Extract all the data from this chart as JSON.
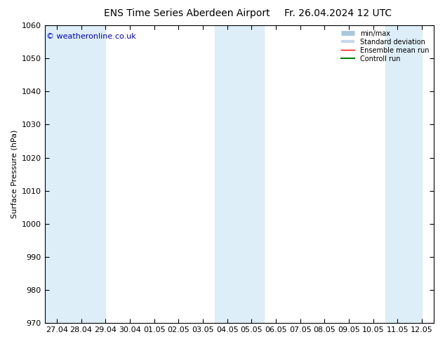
{
  "title_left": "ENS Time Series Aberdeen Airport",
  "title_right": "Fr. 26.04.2024 12 UTC",
  "ylabel": "Surface Pressure (hPa)",
  "ylim": [
    970,
    1060
  ],
  "yticks": [
    970,
    980,
    990,
    1000,
    1010,
    1020,
    1030,
    1040,
    1050,
    1060
  ],
  "xtick_labels": [
    "27.04",
    "28.04",
    "29.04",
    "30.04",
    "01.05",
    "02.05",
    "03.05",
    "04.05",
    "05.05",
    "06.05",
    "07.05",
    "08.05",
    "09.05",
    "10.05",
    "11.05",
    "12.05"
  ],
  "background_color": "#ffffff",
  "plot_bg_color": "#ffffff",
  "band_color": "#ddeef8",
  "copyright_text": "© weatheronline.co.uk",
  "copyright_color": "#0000cc",
  "title_fontsize": 10,
  "axis_fontsize": 8,
  "tick_fontsize": 8
}
